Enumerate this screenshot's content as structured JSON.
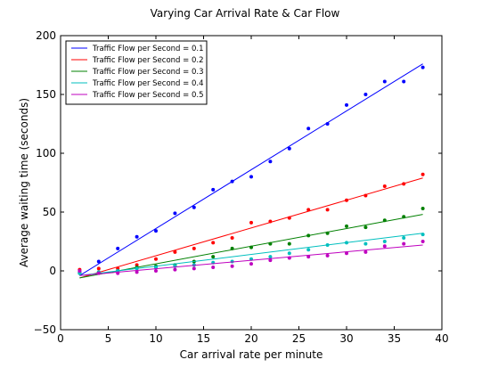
{
  "chart_data": {
    "type": "scatter",
    "title": "Varying Car Arrival Rate & Car Flow",
    "xlabel": "Car arrival rate per minute",
    "ylabel": "Average waiting time (seconds)",
    "xlim": [
      0,
      40
    ],
    "ylim": [
      -50,
      200
    ],
    "xticks": [
      "0",
      "5",
      "10",
      "15",
      "20",
      "25",
      "30",
      "35",
      "40"
    ],
    "yticks": [
      "−50",
      "0",
      "50",
      "100",
      "150",
      "200"
    ],
    "grid": false,
    "legend_position": "top-left",
    "x": [
      2,
      4,
      6,
      8,
      10,
      12,
      14,
      16,
      18,
      20,
      22,
      24,
      26,
      28,
      30,
      32,
      34,
      36,
      38
    ],
    "series": [
      {
        "name": "Traffic Flow per Second = 0.1",
        "color": "#0000ff",
        "fit": [
          2,
          -4,
          38,
          176
        ],
        "values": [
          -1,
          8,
          19,
          29,
          34,
          49,
          54,
          69,
          76,
          80,
          93,
          104,
          121,
          125,
          141,
          150,
          161,
          161,
          173
        ]
      },
      {
        "name": "Traffic Flow per Second = 0.2",
        "color": "#ff0000",
        "fit": [
          2,
          -6,
          38,
          79
        ],
        "values": [
          1,
          2,
          2,
          5,
          10,
          16,
          19,
          24,
          28,
          41,
          42,
          45,
          52,
          52,
          60,
          64,
          72,
          74,
          82
        ]
      },
      {
        "name": "Traffic Flow per Second = 0.3",
        "color": "#008000",
        "fit": [
          2,
          -6,
          38,
          48
        ],
        "values": [
          -2,
          -1,
          0,
          3,
          4,
          5,
          8,
          12,
          19,
          20,
          23,
          23,
          30,
          32,
          38,
          37,
          43,
          46,
          53
        ]
      },
      {
        "name": "Traffic Flow per Second = 0.4",
        "color": "#00bfbf",
        "fit": [
          2,
          -4,
          38,
          32
        ],
        "values": [
          -2,
          -1,
          0,
          2,
          3,
          4,
          5,
          7,
          8,
          10,
          12,
          15,
          18,
          22,
          24,
          23,
          25,
          28,
          31
        ]
      },
      {
        "name": "Traffic Flow per Second = 0.5",
        "color": "#bf00bf",
        "fit": [
          2,
          -4,
          38,
          22
        ],
        "values": [
          0,
          -2,
          -2,
          -1,
          0,
          1,
          2,
          3,
          4,
          6,
          9,
          11,
          12,
          13,
          15,
          16,
          21,
          23,
          25
        ]
      }
    ]
  }
}
